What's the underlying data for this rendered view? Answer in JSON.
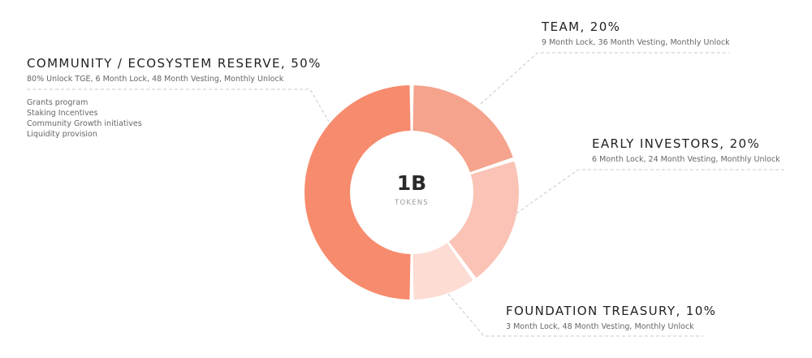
{
  "chart_data": {
    "type": "pie",
    "center": {
      "value": "1B",
      "unit": "TOKENS"
    },
    "slices": [
      {
        "label": "TEAM, 20%",
        "value": 20,
        "detail": "9 Month Lock, 36 Month Vesting, Monthly Unlock",
        "color": "#f5a38d"
      },
      {
        "label": "EARLY INVESTORS, 20%",
        "value": 20,
        "detail": "6 Month Lock, 24 Month Vesting, Monthly Unlock",
        "color": "#fac3b5"
      },
      {
        "label": "FOUNDATION TREASURY, 10%",
        "value": 10,
        "detail": "3 Month Lock, 48 Month Vesting, Monthly Unlock",
        "color": "#fddcd3"
      },
      {
        "label": "COMMUNITY / ECOSYSTEM RESERVE, 50%",
        "value": 50,
        "detail": "80% Unlock TGE, 6 Month Lock, 48 Month Vesting, Monthly Unlock",
        "bullets": [
          "Grants program",
          "Staking Incentives",
          "Community Growth initiatives",
          "Liquidity provision"
        ],
        "color": "#f78b6d"
      }
    ]
  }
}
